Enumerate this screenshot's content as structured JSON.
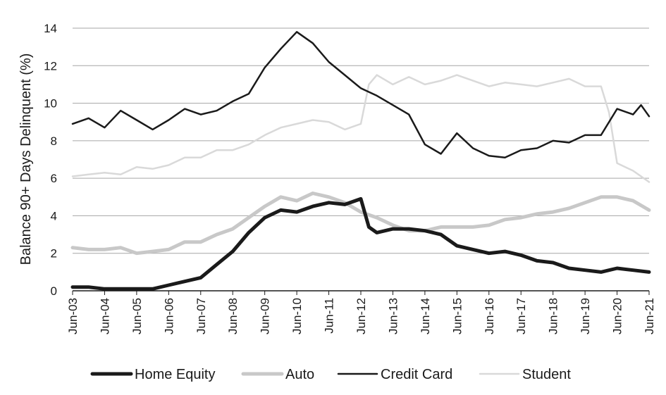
{
  "chart_data": {
    "type": "line",
    "title": "",
    "xlabel": "",
    "ylabel": "Balance 90+ Days Delinquent (%)",
    "ylim": [
      0,
      14
    ],
    "y_ticks": [
      0,
      2,
      4,
      6,
      8,
      10,
      12,
      14
    ],
    "grid": "horizontal",
    "legend_position": "bottom",
    "x_ticks": [
      "Jun-03",
      "Jun-04",
      "Jun-05",
      "Jun-06",
      "Jun-07",
      "Jun-08",
      "Jun-09",
      "Jun-10",
      "Jun-11",
      "Jun-12",
      "Jun-13",
      "Jun-14",
      "Jun-15",
      "Jun-16",
      "Jun-17",
      "Jun-18",
      "Jun-19",
      "Jun-20",
      "Jun-21"
    ],
    "series": [
      {
        "name": "Home Equity",
        "color": "#1a1a1a",
        "points": [
          [
            "Jun-03",
            0.2
          ],
          [
            "Dec-03",
            0.2
          ],
          [
            "Jun-04",
            0.1
          ],
          [
            "Dec-04",
            0.1
          ],
          [
            "Jun-05",
            0.1
          ],
          [
            "Dec-05",
            0.1
          ],
          [
            "Jun-06",
            0.3
          ],
          [
            "Dec-06",
            0.5
          ],
          [
            "Jun-07",
            0.7
          ],
          [
            "Dec-07",
            1.4
          ],
          [
            "Jun-08",
            2.1
          ],
          [
            "Dec-08",
            3.1
          ],
          [
            "Jun-09",
            3.9
          ],
          [
            "Dec-09",
            4.3
          ],
          [
            "Jun-10",
            4.2
          ],
          [
            "Dec-10",
            4.5
          ],
          [
            "Jun-11",
            4.7
          ],
          [
            "Dec-11",
            4.6
          ],
          [
            "Jun-12",
            4.9
          ],
          [
            "Sep-12",
            3.4
          ],
          [
            "Dec-12",
            3.1
          ],
          [
            "Jun-13",
            3.3
          ],
          [
            "Dec-13",
            3.3
          ],
          [
            "Jun-14",
            3.2
          ],
          [
            "Dec-14",
            3.0
          ],
          [
            "Jun-15",
            2.4
          ],
          [
            "Dec-15",
            2.2
          ],
          [
            "Jun-16",
            2.0
          ],
          [
            "Dec-16",
            2.1
          ],
          [
            "Jun-17",
            1.9
          ],
          [
            "Dec-17",
            1.6
          ],
          [
            "Jun-18",
            1.5
          ],
          [
            "Dec-18",
            1.2
          ],
          [
            "Jun-19",
            1.1
          ],
          [
            "Dec-19",
            1.0
          ],
          [
            "Jun-20",
            1.2
          ],
          [
            "Dec-20",
            1.1
          ],
          [
            "Jun-21",
            1.0
          ]
        ]
      },
      {
        "name": "Auto",
        "color": "#c8c8c8",
        "points": [
          [
            "Jun-03",
            2.3
          ],
          [
            "Dec-03",
            2.2
          ],
          [
            "Jun-04",
            2.2
          ],
          [
            "Dec-04",
            2.3
          ],
          [
            "Jun-05",
            2.0
          ],
          [
            "Dec-05",
            2.1
          ],
          [
            "Jun-06",
            2.2
          ],
          [
            "Dec-06",
            2.6
          ],
          [
            "Jun-07",
            2.6
          ],
          [
            "Dec-07",
            3.0
          ],
          [
            "Jun-08",
            3.3
          ],
          [
            "Dec-08",
            3.9
          ],
          [
            "Jun-09",
            4.5
          ],
          [
            "Dec-09",
            5.0
          ],
          [
            "Jun-10",
            4.8
          ],
          [
            "Dec-10",
            5.2
          ],
          [
            "Jun-11",
            5.0
          ],
          [
            "Dec-11",
            4.7
          ],
          [
            "Jun-12",
            4.2
          ],
          [
            "Dec-12",
            3.9
          ],
          [
            "Jun-13",
            3.5
          ],
          [
            "Dec-13",
            3.2
          ],
          [
            "Jun-14",
            3.2
          ],
          [
            "Dec-14",
            3.4
          ],
          [
            "Jun-15",
            3.4
          ],
          [
            "Dec-15",
            3.4
          ],
          [
            "Jun-16",
            3.5
          ],
          [
            "Dec-16",
            3.8
          ],
          [
            "Jun-17",
            3.9
          ],
          [
            "Dec-17",
            4.1
          ],
          [
            "Jun-18",
            4.2
          ],
          [
            "Dec-18",
            4.4
          ],
          [
            "Jun-19",
            4.7
          ],
          [
            "Dec-19",
            5.0
          ],
          [
            "Jun-20",
            5.0
          ],
          [
            "Dec-20",
            4.8
          ],
          [
            "Jun-21",
            4.3
          ]
        ]
      },
      {
        "name": "Credit Card",
        "color": "#1a1a1a",
        "points": [
          [
            "Jun-03",
            8.9
          ],
          [
            "Dec-03",
            9.2
          ],
          [
            "Jun-04",
            8.7
          ],
          [
            "Dec-04",
            9.6
          ],
          [
            "Jun-05",
            9.1
          ],
          [
            "Dec-05",
            8.6
          ],
          [
            "Jun-06",
            9.1
          ],
          [
            "Dec-06",
            9.7
          ],
          [
            "Jun-07",
            9.4
          ],
          [
            "Dec-07",
            9.6
          ],
          [
            "Jun-08",
            10.1
          ],
          [
            "Dec-08",
            10.5
          ],
          [
            "Jun-09",
            11.9
          ],
          [
            "Dec-09",
            12.9
          ],
          [
            "Jun-10",
            13.8
          ],
          [
            "Dec-10",
            13.2
          ],
          [
            "Jun-11",
            12.2
          ],
          [
            "Dec-11",
            11.5
          ],
          [
            "Jun-12",
            10.8
          ],
          [
            "Dec-12",
            10.4
          ],
          [
            "Jun-13",
            9.9
          ],
          [
            "Dec-13",
            9.4
          ],
          [
            "Jun-14",
            7.8
          ],
          [
            "Dec-14",
            7.3
          ],
          [
            "Jun-15",
            8.4
          ],
          [
            "Dec-15",
            7.6
          ],
          [
            "Jun-16",
            7.2
          ],
          [
            "Dec-16",
            7.1
          ],
          [
            "Jun-17",
            7.5
          ],
          [
            "Dec-17",
            7.6
          ],
          [
            "Jun-18",
            8.0
          ],
          [
            "Dec-18",
            7.9
          ],
          [
            "Jun-19",
            8.3
          ],
          [
            "Dec-19",
            8.3
          ],
          [
            "Jun-20",
            9.7
          ],
          [
            "Dec-20",
            9.4
          ],
          [
            "Mar-21",
            9.9
          ],
          [
            "Jun-21",
            9.3
          ]
        ]
      },
      {
        "name": "Student",
        "color": "#d9d9d9",
        "points": [
          [
            "Jun-03",
            6.1
          ],
          [
            "Dec-03",
            6.2
          ],
          [
            "Jun-04",
            6.3
          ],
          [
            "Dec-04",
            6.2
          ],
          [
            "Jun-05",
            6.6
          ],
          [
            "Dec-05",
            6.5
          ],
          [
            "Jun-06",
            6.7
          ],
          [
            "Dec-06",
            7.1
          ],
          [
            "Jun-07",
            7.1
          ],
          [
            "Dec-07",
            7.5
          ],
          [
            "Jun-08",
            7.5
          ],
          [
            "Dec-08",
            7.8
          ],
          [
            "Jun-09",
            8.3
          ],
          [
            "Dec-09",
            8.7
          ],
          [
            "Jun-10",
            8.9
          ],
          [
            "Dec-10",
            9.1
          ],
          [
            "Jun-11",
            9.0
          ],
          [
            "Dec-11",
            8.6
          ],
          [
            "Jun-12",
            8.9
          ],
          [
            "Sep-12",
            11.0
          ],
          [
            "Dec-12",
            11.5
          ],
          [
            "Jun-13",
            11.0
          ],
          [
            "Dec-13",
            11.4
          ],
          [
            "Jun-14",
            11.0
          ],
          [
            "Dec-14",
            11.2
          ],
          [
            "Jun-15",
            11.5
          ],
          [
            "Dec-15",
            11.2
          ],
          [
            "Jun-16",
            10.9
          ],
          [
            "Dec-16",
            11.1
          ],
          [
            "Jun-17",
            11.0
          ],
          [
            "Dec-17",
            10.9
          ],
          [
            "Jun-18",
            11.1
          ],
          [
            "Dec-18",
            11.3
          ],
          [
            "Jun-19",
            10.9
          ],
          [
            "Dec-19",
            10.9
          ],
          [
            "Mar-20",
            9.5
          ],
          [
            "Jun-20",
            6.8
          ],
          [
            "Dec-20",
            6.4
          ],
          [
            "Jun-21",
            5.8
          ]
        ]
      }
    ]
  }
}
